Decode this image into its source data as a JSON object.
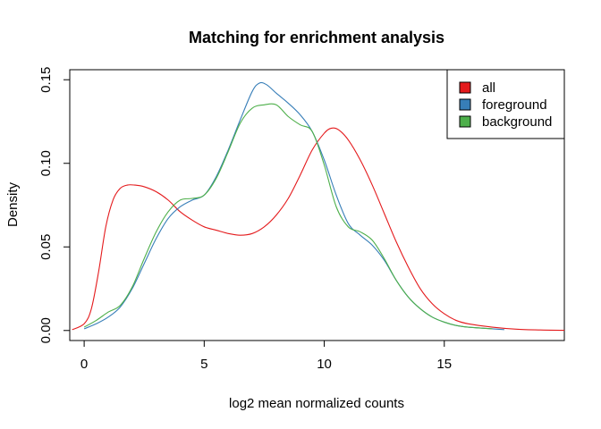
{
  "chart_data": {
    "type": "line",
    "title": "Matching for enrichment analysis",
    "xlabel": "log2 mean normalized counts",
    "ylabel": "Density",
    "xlim": [
      -0.6,
      20
    ],
    "ylim": [
      -0.006,
      0.156
    ],
    "x_ticks": [
      "0",
      "5",
      "10",
      "15"
    ],
    "x_tick_values": [
      0,
      5,
      10,
      15
    ],
    "y_ticks": [
      "0.00",
      "0.05",
      "0.10",
      "0.15"
    ],
    "y_tick_values": [
      0,
      0.05,
      0.1,
      0.15
    ],
    "grid": false,
    "legend_position": "top-right",
    "series": [
      {
        "name": "all",
        "color": "#E41A1C",
        "x": [
          -0.5,
          0,
          0.3,
          0.6,
          0.9,
          1.2,
          1.5,
          1.8,
          2.1,
          2.5,
          3,
          3.5,
          4,
          4.5,
          5,
          5.5,
          6,
          6.5,
          7,
          7.5,
          8,
          8.5,
          9,
          9.5,
          10,
          10.3,
          10.6,
          11,
          11.5,
          12,
          12.5,
          13,
          13.5,
          14,
          14.5,
          15,
          15.5,
          16,
          17,
          18,
          19,
          20
        ],
        "y": [
          0.0005,
          0.004,
          0.013,
          0.035,
          0.062,
          0.078,
          0.085,
          0.087,
          0.087,
          0.086,
          0.083,
          0.078,
          0.071,
          0.066,
          0.062,
          0.06,
          0.058,
          0.057,
          0.058,
          0.062,
          0.069,
          0.079,
          0.093,
          0.108,
          0.118,
          0.121,
          0.12,
          0.114,
          0.102,
          0.087,
          0.07,
          0.053,
          0.038,
          0.025,
          0.016,
          0.01,
          0.006,
          0.004,
          0.002,
          0.0008,
          0.0003,
          0.0001
        ]
      },
      {
        "name": "foreground",
        "color": "#377EB8",
        "x": [
          0,
          0.5,
          1,
          1.5,
          2,
          2.5,
          3,
          3.5,
          4,
          4.5,
          5,
          5.5,
          6,
          6.5,
          7,
          7.3,
          7.6,
          8,
          8.5,
          9,
          9.5,
          10,
          10.5,
          11,
          11.5,
          12,
          12.5,
          13,
          13.5,
          14,
          14.5,
          15,
          15.5,
          16,
          17,
          17.5
        ],
        "y": [
          0.001,
          0.004,
          0.008,
          0.014,
          0.025,
          0.04,
          0.055,
          0.067,
          0.074,
          0.078,
          0.081,
          0.092,
          0.108,
          0.126,
          0.143,
          0.148,
          0.147,
          0.142,
          0.136,
          0.129,
          0.119,
          0.102,
          0.081,
          0.064,
          0.057,
          0.051,
          0.042,
          0.03,
          0.02,
          0.013,
          0.008,
          0.005,
          0.003,
          0.002,
          0.001,
          0.0005
        ]
      },
      {
        "name": "background",
        "color": "#4DAF4A",
        "x": [
          0,
          0.5,
          1,
          1.5,
          2,
          2.5,
          3,
          3.5,
          4,
          4.5,
          5,
          5.5,
          6,
          6.5,
          7,
          7.5,
          8,
          8.5,
          9,
          9.5,
          10,
          10.5,
          11,
          11.5,
          12,
          12.5,
          13,
          13.5,
          14,
          14.5,
          15,
          15.5,
          16,
          17
        ],
        "y": [
          0.002,
          0.006,
          0.011,
          0.015,
          0.026,
          0.043,
          0.059,
          0.071,
          0.078,
          0.079,
          0.081,
          0.091,
          0.107,
          0.124,
          0.133,
          0.135,
          0.135,
          0.128,
          0.123,
          0.119,
          0.099,
          0.074,
          0.062,
          0.059,
          0.054,
          0.043,
          0.03,
          0.02,
          0.013,
          0.008,
          0.005,
          0.003,
          0.002,
          0.001
        ]
      }
    ]
  }
}
